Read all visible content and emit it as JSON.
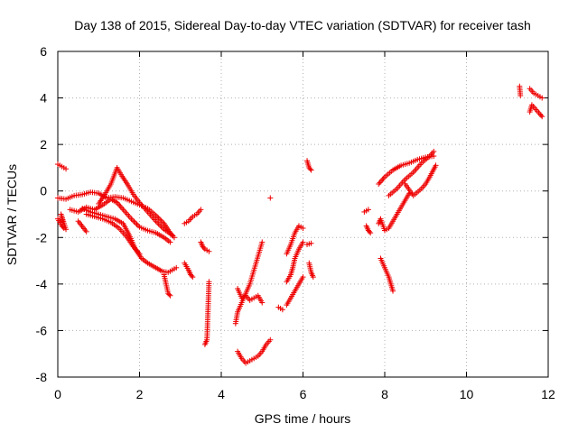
{
  "chart_data": {
    "type": "scatter",
    "title": "Day 138 of 2015, Sidereal Day-to-day VTEC variation (SDTVAR) for receiver tash",
    "xlabel": "GPS time / hours",
    "ylabel": "SDTVAR / TECUs",
    "xlim": [
      0,
      12
    ],
    "ylim": [
      -8,
      6
    ],
    "xticks": [
      0,
      2,
      4,
      6,
      8,
      10,
      12
    ],
    "yticks": [
      -8,
      -6,
      -4,
      -2,
      0,
      2,
      4,
      6
    ],
    "xtick_labels": [
      "0",
      "2",
      "4",
      "6",
      "8",
      "10",
      "12"
    ],
    "ytick_labels": [
      "-8",
      "-6",
      "-4",
      "-2",
      "0",
      "2",
      "4",
      "6"
    ],
    "grid": true,
    "marker": "+",
    "colors": {
      "series": "#ee0000",
      "grid": "#b0b0b0",
      "axes": "#000000"
    },
    "series": [
      {
        "segments": [
          [
            [
              0.0,
              1.15
            ],
            [
              0.05,
              1.1
            ],
            [
              0.1,
              1.05
            ],
            [
              0.15,
              1.0
            ],
            [
              0.2,
              0.95
            ]
          ],
          [
            [
              0.0,
              -1.2
            ],
            [
              0.05,
              -1.35
            ],
            [
              0.1,
              -1.5
            ],
            [
              0.15,
              -1.6
            ],
            [
              0.2,
              -1.65
            ],
            [
              0.08,
              -1.0
            ],
            [
              0.12,
              -1.3
            ]
          ],
          [
            [
              0.0,
              -0.3
            ],
            [
              0.2,
              -0.35
            ],
            [
              0.4,
              -0.2
            ],
            [
              0.6,
              -0.15
            ],
            [
              0.8,
              -0.05
            ],
            [
              1.0,
              -0.1
            ],
            [
              1.2,
              -0.3
            ],
            [
              1.4,
              -0.25
            ],
            [
              1.6,
              -0.3
            ],
            [
              1.8,
              -0.45
            ],
            [
              2.0,
              -0.6
            ],
            [
              2.2,
              -0.75
            ],
            [
              2.4,
              -1.05
            ],
            [
              2.6,
              -1.4
            ],
            [
              2.75,
              -1.8
            ],
            [
              2.85,
              -2.0
            ]
          ],
          [
            [
              0.3,
              -0.8
            ],
            [
              0.5,
              -0.9
            ],
            [
              0.7,
              -0.7
            ],
            [
              0.9,
              -0.8
            ],
            [
              1.1,
              -0.6
            ],
            [
              1.3,
              -0.35
            ],
            [
              1.45,
              -0.5
            ],
            [
              1.6,
              -0.8
            ],
            [
              1.8,
              -1.2
            ],
            [
              2.0,
              -1.55
            ],
            [
              2.2,
              -1.7
            ],
            [
              2.4,
              -1.8
            ],
            [
              2.6,
              -2.0
            ],
            [
              2.75,
              -2.2
            ]
          ],
          [
            [
              0.6,
              -0.75
            ],
            [
              0.8,
              -0.9
            ],
            [
              1.0,
              -1.0
            ],
            [
              1.2,
              -1.1
            ],
            [
              1.4,
              -1.2
            ],
            [
              1.6,
              -1.4
            ],
            [
              1.75,
              -1.9
            ],
            [
              1.9,
              -2.5
            ],
            [
              2.05,
              -2.9
            ],
            [
              2.2,
              -3.1
            ],
            [
              2.4,
              -3.3
            ],
            [
              2.55,
              -3.45
            ],
            [
              2.7,
              -3.5
            ],
            [
              2.8,
              -3.4
            ],
            [
              2.9,
              -3.3
            ]
          ],
          [
            [
              0.7,
              -1.0
            ],
            [
              0.9,
              -1.1
            ],
            [
              1.1,
              -1.2
            ],
            [
              1.3,
              -1.35
            ],
            [
              1.5,
              -1.6
            ],
            [
              1.7,
              -2.0
            ],
            [
              1.85,
              -2.4
            ],
            [
              2.0,
              -2.7
            ]
          ],
          [
            [
              1.0,
              -0.55
            ],
            [
              1.15,
              -0.15
            ],
            [
              1.3,
              0.3
            ],
            [
              1.45,
              1.0
            ],
            [
              1.55,
              0.7
            ],
            [
              1.7,
              0.3
            ],
            [
              1.85,
              -0.15
            ],
            [
              2.0,
              -0.5
            ],
            [
              2.2,
              -0.9
            ],
            [
              2.4,
              -1.3
            ],
            [
              2.6,
              -1.65
            ],
            [
              2.8,
              -1.9
            ]
          ],
          [
            [
              0.7,
              -1.75
            ],
            [
              0.5,
              -1.3
            ]
          ],
          [
            [
              2.6,
              -3.6
            ],
            [
              2.65,
              -4.0
            ],
            [
              2.7,
              -4.4
            ],
            [
              2.75,
              -4.5
            ]
          ],
          [
            [
              3.1,
              -1.4
            ],
            [
              3.2,
              -1.3
            ],
            [
              3.3,
              -1.1
            ],
            [
              3.4,
              -1.0
            ],
            [
              3.5,
              -0.8
            ]
          ],
          [
            [
              3.1,
              -3.1
            ],
            [
              3.2,
              -3.4
            ],
            [
              3.25,
              -3.6
            ],
            [
              3.3,
              -3.7
            ]
          ],
          [
            [
              3.5,
              -2.2
            ],
            [
              3.55,
              -2.4
            ],
            [
              3.6,
              -2.5
            ],
            [
              3.7,
              -2.6
            ]
          ],
          [
            [
              3.7,
              -3.9
            ],
            [
              3.65,
              -6.4
            ],
            [
              3.6,
              -6.6
            ]
          ],
          [
            [
              4.35,
              -5.7
            ],
            [
              4.4,
              -5.2
            ],
            [
              4.5,
              -4.8
            ],
            [
              4.6,
              -4.4
            ],
            [
              4.7,
              -4.0
            ],
            [
              4.8,
              -3.4
            ],
            [
              4.9,
              -2.8
            ],
            [
              5.0,
              -2.2
            ]
          ],
          [
            [
              4.4,
              -4.2
            ],
            [
              4.5,
              -4.6
            ],
            [
              4.6,
              -4.5
            ],
            [
              4.7,
              -4.7
            ],
            [
              4.8,
              -4.6
            ],
            [
              4.9,
              -4.5
            ],
            [
              5.0,
              -4.8
            ]
          ],
          [
            [
              4.4,
              -6.9
            ],
            [
              4.5,
              -7.2
            ],
            [
              4.6,
              -7.4
            ],
            [
              4.7,
              -7.3
            ],
            [
              4.8,
              -7.2
            ],
            [
              4.9,
              -7.1
            ],
            [
              5.0,
              -6.9
            ],
            [
              5.1,
              -6.6
            ],
            [
              5.2,
              -6.4
            ]
          ],
          [
            [
              5.2,
              -0.3
            ]
          ],
          [
            [
              5.4,
              -5.0
            ],
            [
              5.5,
              -5.1
            ]
          ],
          [
            [
              5.6,
              -3.9
            ],
            [
              5.7,
              -3.6
            ],
            [
              5.75,
              -3.3
            ],
            [
              5.8,
              -2.9
            ],
            [
              5.9,
              -2.5
            ],
            [
              6.0,
              -2.2
            ]
          ],
          [
            [
              5.6,
              -4.9
            ],
            [
              5.7,
              -4.6
            ],
            [
              5.8,
              -4.3
            ],
            [
              5.9,
              -4.0
            ],
            [
              6.0,
              -3.7
            ]
          ],
          [
            [
              5.6,
              -2.7
            ],
            [
              5.7,
              -2.3
            ],
            [
              5.8,
              -1.8
            ],
            [
              5.9,
              -1.5
            ],
            [
              6.0,
              -1.6
            ]
          ],
          [
            [
              6.1,
              1.3
            ],
            [
              6.15,
              1.0
            ],
            [
              6.2,
              0.9
            ]
          ],
          [
            [
              6.1,
              -2.3
            ],
            [
              6.2,
              -2.25
            ]
          ],
          [
            [
              6.15,
              -3.1
            ],
            [
              6.2,
              -3.5
            ],
            [
              6.25,
              -3.7
            ]
          ],
          [
            [
              7.5,
              -0.9
            ],
            [
              7.6,
              -0.8
            ]
          ],
          [
            [
              7.55,
              -1.5
            ],
            [
              7.6,
              -1.7
            ],
            [
              7.65,
              -1.8
            ]
          ],
          [
            [
              7.9,
              -2.9
            ],
            [
              8.0,
              -3.3
            ],
            [
              8.1,
              -3.7
            ],
            [
              8.15,
              -4.0
            ],
            [
              8.2,
              -4.3
            ]
          ],
          [
            [
              7.85,
              -1.4
            ],
            [
              7.9,
              -1.2
            ],
            [
              8.0,
              -1.7
            ],
            [
              8.1,
              -1.6
            ],
            [
              8.2,
              -1.3
            ],
            [
              8.3,
              -1.0
            ],
            [
              8.4,
              -0.7
            ],
            [
              8.5,
              -0.4
            ],
            [
              8.6,
              -0.1
            ]
          ],
          [
            [
              7.85,
              0.3
            ],
            [
              8.0,
              0.6
            ],
            [
              8.2,
              0.9
            ],
            [
              8.4,
              1.1
            ],
            [
              8.6,
              1.2
            ],
            [
              8.8,
              1.35
            ],
            [
              9.0,
              1.45
            ],
            [
              9.2,
              1.5
            ]
          ],
          [
            [
              8.1,
              -0.2
            ],
            [
              8.3,
              0.1
            ],
            [
              8.5,
              0.5
            ],
            [
              8.7,
              0.8
            ],
            [
              8.9,
              1.2
            ],
            [
              9.1,
              1.5
            ],
            [
              9.2,
              1.7
            ]
          ],
          [
            [
              8.5,
              0.3
            ],
            [
              8.7,
              -0.2
            ],
            [
              8.9,
              0.1
            ],
            [
              9.0,
              0.3
            ],
            [
              9.1,
              0.6
            ],
            [
              9.25,
              1.1
            ]
          ],
          [
            [
              11.3,
              4.5
            ],
            [
              11.32,
              4.1
            ]
          ],
          [
            [
              11.55,
              4.4
            ],
            [
              11.65,
              4.2
            ],
            [
              11.75,
              4.1
            ],
            [
              11.85,
              4.0
            ]
          ],
          [
            [
              11.55,
              3.4
            ],
            [
              11.6,
              3.7
            ],
            [
              11.7,
              3.5
            ],
            [
              11.8,
              3.3
            ],
            [
              11.85,
              3.2
            ]
          ]
        ]
      }
    ]
  }
}
